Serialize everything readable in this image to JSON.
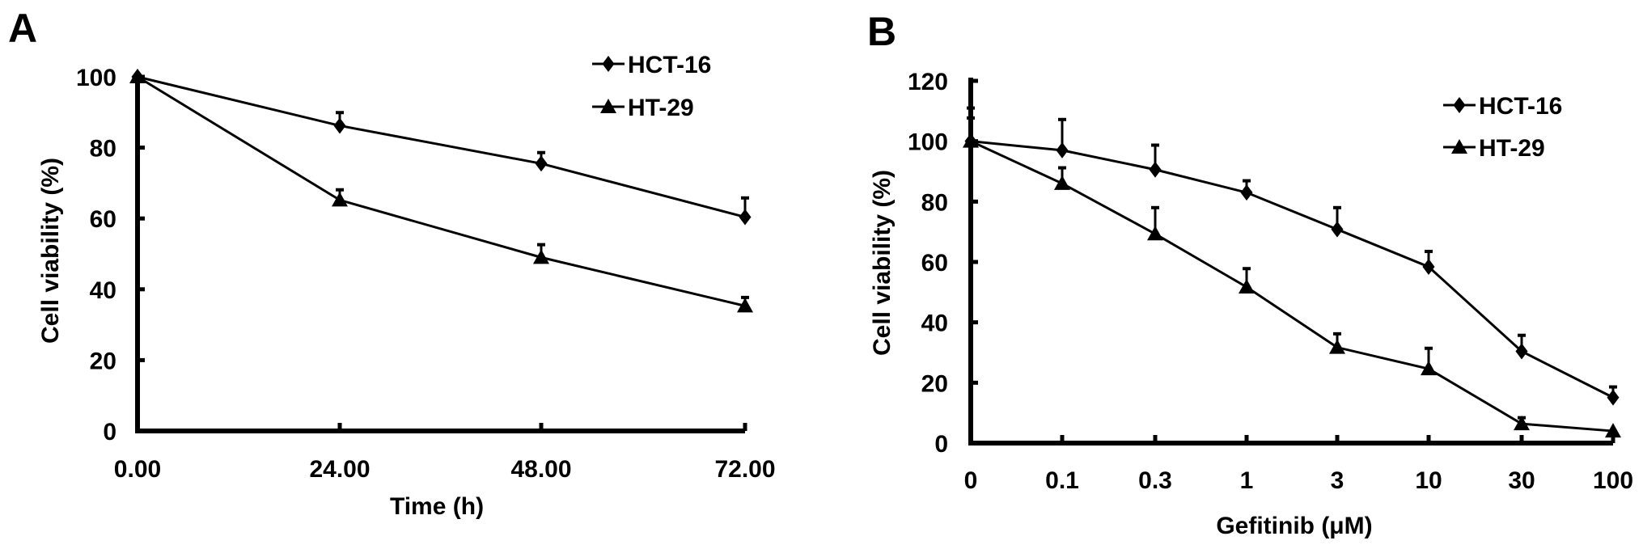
{
  "chart_data": [
    {
      "panel_label": "A",
      "type": "line",
      "title": "",
      "xlabel": "Time (h)",
      "ylabel": "Cell viability (%)",
      "categories": [
        "0.00",
        "24.00",
        "48.00",
        "72.00"
      ],
      "ylim": [
        0,
        100
      ],
      "yticks": [
        "0",
        "20",
        "40",
        "60",
        "80",
        "100"
      ],
      "grid": false,
      "legend_position": "top-right",
      "series": [
        {
          "name": "HCT-16",
          "marker": "diamond",
          "values": [
            100,
            86.2,
            75.5,
            60.4
          ],
          "error_upper": [
            null,
            89.9,
            78.6,
            65.8
          ]
        },
        {
          "name": "HT-29",
          "marker": "triangle",
          "values": [
            100,
            65.2,
            49.0,
            35.3
          ],
          "error_upper": [
            null,
            68.1,
            52.6,
            37.7
          ]
        }
      ]
    },
    {
      "panel_label": "B",
      "type": "line",
      "title": "",
      "xlabel": "Gefitinib (μM)",
      "ylabel": "Cell viability (%)",
      "categories": [
        "0",
        "0.1",
        "0.3",
        "1",
        "3",
        "10",
        "30",
        "100"
      ],
      "ylim": [
        0,
        120
      ],
      "yticks": [
        "0",
        "20",
        "40",
        "60",
        "80",
        "100",
        "120"
      ],
      "grid": false,
      "legend_position": "top-right",
      "series": [
        {
          "name": "HCT-16",
          "marker": "diamond",
          "values": [
            100,
            97,
            90.6,
            83,
            70.8,
            58.4,
            30.4,
            15.1
          ],
          "error_upper": [
            111,
            107.2,
            98.7,
            86.9,
            78,
            63.5,
            35.7,
            18.6
          ]
        },
        {
          "name": "HT-29",
          "marker": "triangle",
          "values": [
            100,
            86,
            69.3,
            51.7,
            31.7,
            24.6,
            6.4,
            4
          ],
          "error_upper": [
            107.7,
            91.2,
            78,
            57.8,
            36.2,
            31.4,
            8.4,
            null
          ]
        }
      ]
    }
  ]
}
